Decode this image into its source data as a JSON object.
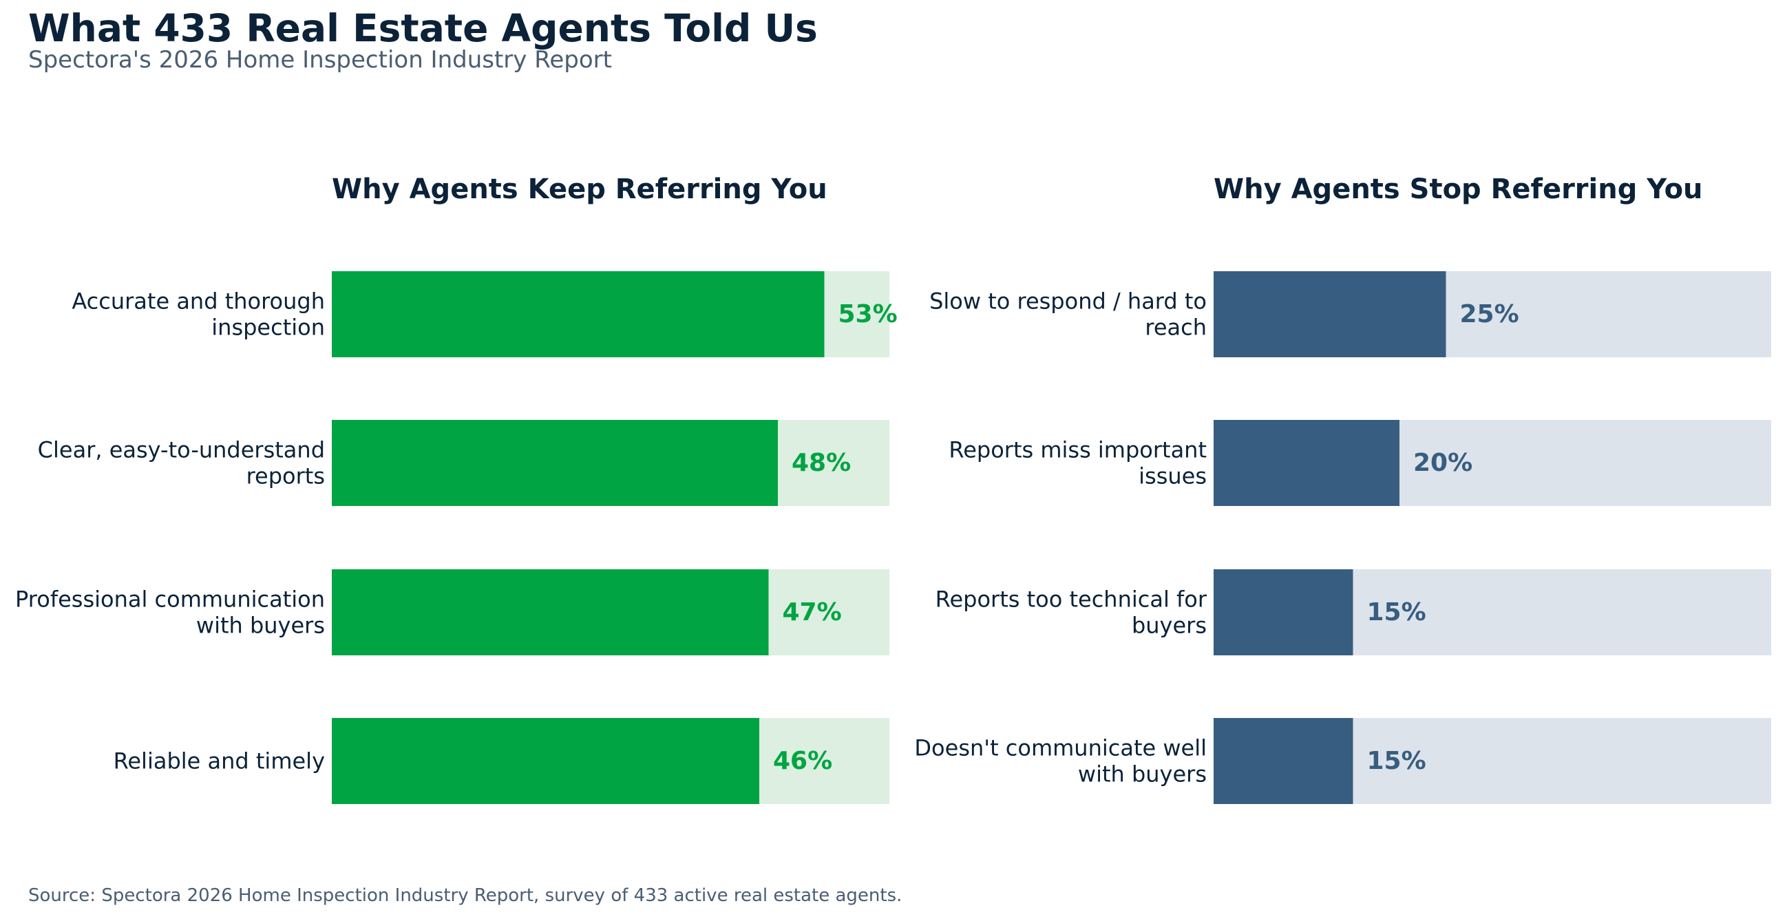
{
  "header": {
    "title": "What 433 Real Estate Agents Told Us",
    "subtitle": "Spectora's 2026 Home Inspection Industry Report"
  },
  "footer": {
    "source": "Source: Spectora 2026 Home Inspection Industry Report, survey of 433 active real estate agents."
  },
  "chart_data": [
    {
      "type": "bar",
      "orientation": "horizontal",
      "title": "Why Agents Keep Referring You",
      "categories": [
        [
          "Accurate and thorough",
          "inspection"
        ],
        [
          "Clear, easy-to-understand",
          "reports"
        ],
        [
          "Professional communication",
          "with buyers"
        ],
        [
          "Reliable and timely"
        ]
      ],
      "values": [
        53,
        48,
        47,
        46
      ],
      "value_labels": [
        "53%",
        "48%",
        "47%",
        "46%"
      ],
      "unit": "%",
      "xlim": [
        0,
        60
      ],
      "grid": false,
      "bar_color": "#00a442",
      "track_color": "#dcefe0",
      "label_color": "#00a442"
    },
    {
      "type": "bar",
      "orientation": "horizontal",
      "title": "Why Agents Stop Referring You",
      "categories": [
        [
          "Slow to respond / hard to",
          "reach"
        ],
        [
          "Reports miss important",
          "issues"
        ],
        [
          "Reports too technical for",
          "buyers"
        ],
        [
          "Doesn't communicate well",
          "with buyers"
        ]
      ],
      "values": [
        25,
        20,
        15,
        15
      ],
      "value_labels": [
        "25%",
        "20%",
        "15%",
        "15%"
      ],
      "unit": "%",
      "xlim": [
        0,
        60
      ],
      "grid": false,
      "bar_color": "#375d80",
      "track_color": "#dde3ea",
      "label_color": "#375d80"
    }
  ]
}
